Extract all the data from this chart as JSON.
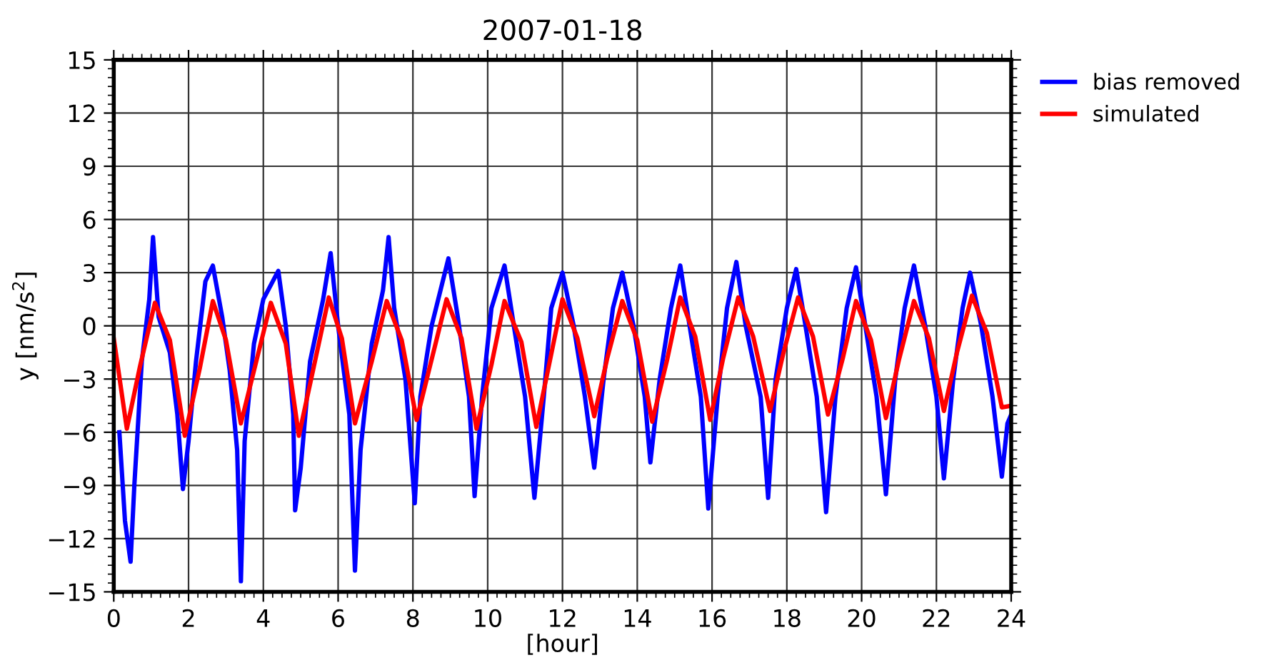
{
  "chart_data": {
    "type": "line",
    "title": "2007-01-18",
    "xlabel": "[hour]",
    "ylabel": "y [nm/s$^{2}$]",
    "xlim": [
      0,
      24
    ],
    "xticks": [
      0,
      2,
      4,
      6,
      8,
      10,
      12,
      14,
      16,
      18,
      20,
      22,
      24
    ],
    "ylim": [
      -15,
      15
    ],
    "yticks": [
      {
        "value": -15,
        "label": "−15"
      },
      {
        "value": -12,
        "label": "−12"
      },
      {
        "value": -9,
        "label": "−9"
      },
      {
        "value": -6,
        "label": "−6"
      },
      {
        "value": -3,
        "label": "−3"
      },
      0,
      3,
      6,
      9,
      12,
      15
    ],
    "grid": true,
    "legend": "top right",
    "line_style": "solid",
    "marker": "none",
    "series": [
      {
        "name": "bias removed",
        "color": "#0000ff",
        "x": [
          0.15,
          0.3,
          0.45,
          0.55,
          0.75,
          0.95,
          1.05,
          1.2,
          1.5,
          1.7,
          1.85,
          2.0,
          2.2,
          2.45,
          2.65,
          2.9,
          3.1,
          3.3,
          3.4,
          3.5,
          3.75,
          4.0,
          4.4,
          4.6,
          4.8,
          4.85,
          5.0,
          5.25,
          5.6,
          5.8,
          6.0,
          6.3,
          6.45,
          6.6,
          6.9,
          7.2,
          7.35,
          7.5,
          7.8,
          8.05,
          8.2,
          8.5,
          8.95,
          9.2,
          9.5,
          9.65,
          9.85,
          10.1,
          10.45,
          10.7,
          11.0,
          11.25,
          11.5,
          11.7,
          12.0,
          12.3,
          12.6,
          12.85,
          13.1,
          13.35,
          13.6,
          13.9,
          14.2,
          14.35,
          14.6,
          14.9,
          15.15,
          15.4,
          15.7,
          15.9,
          16.15,
          16.4,
          16.65,
          16.9,
          17.3,
          17.5,
          17.7,
          18.0,
          18.25,
          18.5,
          18.8,
          19.05,
          19.3,
          19.6,
          19.85,
          20.1,
          20.4,
          20.65,
          20.9,
          21.15,
          21.4,
          21.7,
          22.0,
          22.2,
          22.45,
          22.7,
          22.9,
          23.2,
          23.5,
          23.75,
          23.9,
          24
        ],
        "values": [
          -6,
          -11,
          -13.3,
          -9,
          -2,
          1.5,
          5.0,
          0.5,
          -1.5,
          -5,
          -9.2,
          -6.5,
          -2,
          2.5,
          3.4,
          0.5,
          -2.5,
          -7,
          -14.4,
          -6.5,
          -1,
          1.5,
          3.1,
          0,
          -5,
          -10.4,
          -8,
          -2,
          1.5,
          4.1,
          0,
          -5,
          -13.8,
          -7,
          -1,
          2,
          5.0,
          1,
          -3,
          -10.0,
          -4,
          0,
          3.8,
          0.5,
          -4,
          -9.6,
          -4,
          1,
          3.4,
          0,
          -4,
          -9.7,
          -4,
          1,
          3.0,
          0,
          -4,
          -8.0,
          -3,
          1,
          3.0,
          0,
          -4,
          -7.7,
          -3,
          1,
          3.4,
          0,
          -4,
          -10.3,
          -4,
          1,
          3.6,
          0,
          -4,
          -9.7,
          -3,
          1,
          3.2,
          0,
          -4,
          -10.5,
          -4,
          1,
          3.3,
          0,
          -4,
          -9.5,
          -3,
          1,
          3.4,
          0,
          -4,
          -8.6,
          -3,
          1,
          3.0,
          0,
          -4,
          -8.5,
          -5.5,
          -5
        ]
      },
      {
        "name": "simulated",
        "color": "#ff0000",
        "x": [
          0,
          0.35,
          0.7,
          1.1,
          1.5,
          1.9,
          2.3,
          2.65,
          3.0,
          3.4,
          3.8,
          4.2,
          4.6,
          4.95,
          5.35,
          5.75,
          6.1,
          6.45,
          6.9,
          7.3,
          7.7,
          8.1,
          8.5,
          8.9,
          9.3,
          9.7,
          10.1,
          10.45,
          10.9,
          11.3,
          11.65,
          12.0,
          12.4,
          12.85,
          13.2,
          13.6,
          14.0,
          14.4,
          14.8,
          15.15,
          15.55,
          15.95,
          16.3,
          16.7,
          17.1,
          17.55,
          17.9,
          18.3,
          18.7,
          19.1,
          19.5,
          19.85,
          20.25,
          20.65,
          21.0,
          21.4,
          21.8,
          22.2,
          22.55,
          22.95,
          23.35,
          23.75,
          24
        ],
        "values": [
          -0.7,
          -5.8,
          -2.3,
          1.3,
          -0.8,
          -6.2,
          -2.4,
          1.4,
          -0.8,
          -5.5,
          -2.1,
          1.3,
          -1.0,
          -6.2,
          -2.3,
          1.6,
          -0.7,
          -5.5,
          -2.0,
          1.4,
          -0.8,
          -5.3,
          -1.9,
          1.5,
          -0.7,
          -5.8,
          -2.2,
          1.4,
          -0.9,
          -5.7,
          -2.1,
          1.5,
          -0.7,
          -5.1,
          -1.8,
          1.4,
          -0.8,
          -5.4,
          -1.9,
          1.6,
          -0.6,
          -5.3,
          -1.8,
          1.6,
          -0.6,
          -4.8,
          -1.6,
          1.6,
          -0.6,
          -5.0,
          -1.8,
          1.4,
          -0.8,
          -5.2,
          -1.9,
          1.4,
          -0.7,
          -4.8,
          -1.5,
          1.7,
          -0.4,
          -4.6,
          -4.5
        ]
      }
    ]
  }
}
